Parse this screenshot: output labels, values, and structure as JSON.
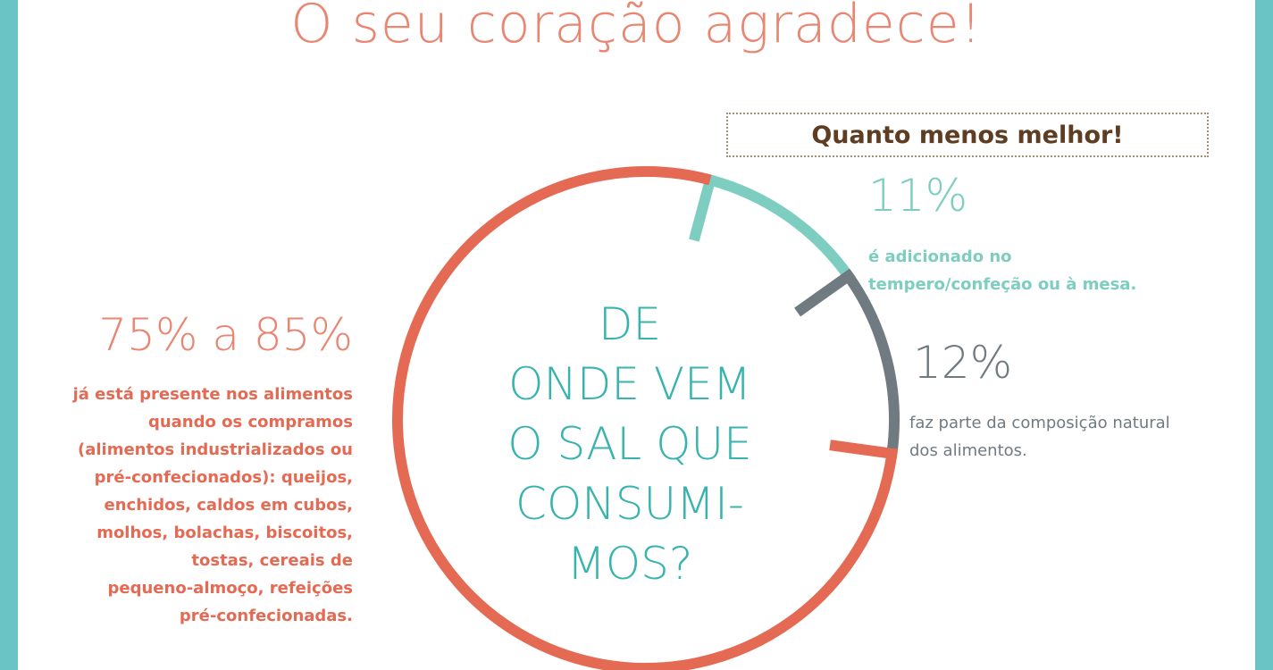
{
  "headline": "O seu coração agradece!",
  "tagline": "Quanto menos melhor!",
  "question_lines": [
    "DE",
    "ONDE VEM",
    "O SAL QUE",
    "CONSUMI-",
    "MOS?"
  ],
  "colors": {
    "processed": "#e46a53",
    "added": "#7dcdc0",
    "natural": "#6f7b81",
    "frame": "#6ac4c6"
  },
  "chart_data": {
    "type": "pie",
    "style": "ring",
    "slices": [
      {
        "label": "11%",
        "value": 11,
        "color": "#7dcdc0",
        "description": "é adicionado no tempero/confeção ou à mesa."
      },
      {
        "label": "12%",
        "value": 12,
        "color": "#6f7b81",
        "description": "faz parte da composição natural dos alimentos."
      },
      {
        "label": "75% a 85%",
        "value": 77,
        "color": "#e46a53",
        "description": "já está presente nos alimentos quando os compramos (alimentos industrializados ou pré-confecionados): queijos, enchidos, caldos em cubos, molhos, bolachas, biscoitos, tostas, cereais de pequeno-almoço, refeições pré-confecionadas."
      }
    ],
    "annotations": {
      "added": {
        "pct": "11%",
        "lines": [
          "é adicionado no",
          "tempero/confeção ou à mesa."
        ]
      },
      "natural": {
        "pct": "12%",
        "lines": [
          "faz parte da composição natural",
          "dos alimentos."
        ]
      },
      "processed": {
        "pct": "75% a 85%",
        "lines": [
          "já está presente nos alimentos",
          "quando os compramos",
          "(alimentos industrializados ou",
          "pré-confecionados): queijos,",
          "enchidos, caldos em cubos,",
          "molhos, bolachas, biscoitos,",
          "tostas, cereais de",
          "pequeno-almoço, refeições",
          "pré-confecionadas."
        ]
      }
    }
  }
}
